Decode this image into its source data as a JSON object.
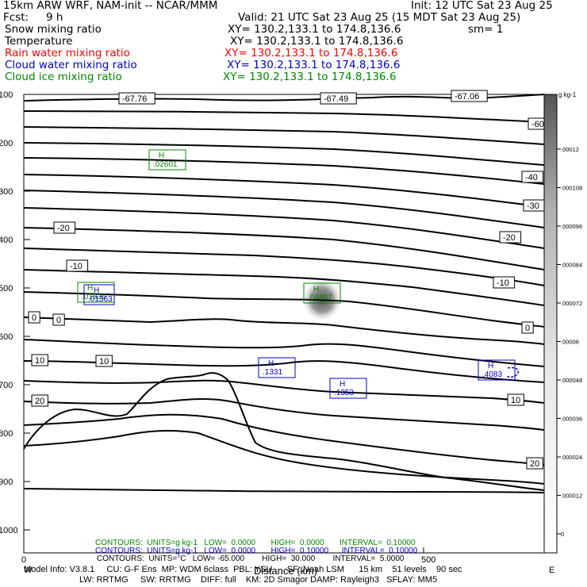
{
  "header": {
    "model_title": "15km ARW WRF, NAM-init -- NCAR/MMM",
    "init": "Init: 12 UTC Sat 23 Aug 25",
    "fcst_label": "Fcst:",
    "fcst_value": "9 h",
    "valid": "Valid: 21 UTC Sat 23 Aug 25 (15 MDT Sat 23 Aug 25)",
    "fields": [
      {
        "name": "Snow mixing ratio",
        "xy": "XY= 130.2,133.1 to 174.8,136.6",
        "color": "#000000",
        "extra": "sm= 1"
      },
      {
        "name": "Temperature",
        "xy": "XY= 130.2,133.1 to 174.8,136.6",
        "color": "#000000",
        "extra": ""
      },
      {
        "name": "Rain water mixing ratio",
        "xy": "XY= 130.2,133.1 to 174.8,136.6",
        "color": "#ff0000",
        "extra": ""
      },
      {
        "name": "Cloud water mixing ratio",
        "xy": "XY= 130.2,133.1 to 174.8,136.6",
        "color": "#0000cc",
        "extra": ""
      },
      {
        "name": "Cloud ice mixing ratio",
        "xy": "XY= 130.2,133.1 to 174.8,136.6",
        "color": "#008800",
        "extra": ""
      }
    ]
  },
  "chart_data": {
    "type": "cross-section",
    "y_axis": {
      "ticks": [
        "100",
        "200",
        "300",
        "400",
        "500",
        "600",
        "700",
        "800",
        "900",
        "1000"
      ],
      "orientation": "pressure-decreasing-up"
    },
    "x_axis": {
      "ticks": [
        "0",
        "500"
      ],
      "label": "Distance (km)"
    },
    "colorbar": {
      "unit_label": "g kg-1",
      "ticks": [
        ".00012",
        ".000108",
        ".000096",
        ".000084",
        ".000072",
        ".00006",
        ".000048",
        ".000036",
        ".000024",
        ".000012",
        "0"
      ]
    },
    "temperature_labels": [
      {
        "text": "-67.76"
      },
      {
        "text": "-67.49"
      },
      {
        "text": "-67.06"
      },
      {
        "text": "-60"
      },
      {
        "text": "-40"
      },
      {
        "text": "-30"
      },
      {
        "text": "-20"
      },
      {
        "text": "-20"
      },
      {
        "text": "-10"
      },
      {
        "text": "-10"
      },
      {
        "text": "0"
      },
      {
        "text": "0"
      },
      {
        "text": "0"
      },
      {
        "text": "10"
      },
      {
        "text": "10"
      },
      {
        "text": "10"
      },
      {
        "text": "20"
      },
      {
        "text": "20"
      }
    ],
    "highs": [
      {
        "field": "cloud ice",
        "value": ".02601",
        "color": "#008800"
      },
      {
        "field": "cloud ice",
        "value": ".01836",
        "color": "#008800"
      },
      {
        "field": "cloud ice",
        "value": ".04107",
        "color": "#008800"
      },
      {
        "field": "cloud water",
        "value": ".1331",
        "color": "#0000cc"
      },
      {
        "field": "cloud water",
        "value": ".1353",
        "color": "#0000cc"
      },
      {
        "field": "cloud water",
        "value": ".4083",
        "color": "#0000cc"
      },
      {
        "field": "cloud water",
        "value": ".01363",
        "color": "#0000cc"
      }
    ],
    "contour_info": [
      {
        "text": "CONTOURS:  UNITS=g kg-1   LOW=  0.0000       HIGH=  0.0000       INTERVAL=  0.10000",
        "color": "#008800"
      },
      {
        "text": "CONTOURS:  UNITS=g kg-1   LOW=  0.0000       HIGH=  0.10000      INTERVAL=  0.10000",
        "color": "#0000cc"
      },
      {
        "text": "CONTOURS:  UNITS=°C   LOW= -65.000        HIGH=  30.000        INTERVAL=  5.0000",
        "color": "#000000"
      }
    ]
  },
  "footer": {
    "line1": "Model Info: V3.8.1     CU: G-F Ens  MP: WDM 6class  PBL: YSU      SF: Noah LSM      15 km    51 levels    90 sec",
    "line2": "LW: RRTMG     SW: RRTMG    DIFF: full    KM: 2D Smagor DAMP: Rayleigh3   SFLAY: MM5",
    "endpoints": [
      "W",
      "E"
    ]
  }
}
